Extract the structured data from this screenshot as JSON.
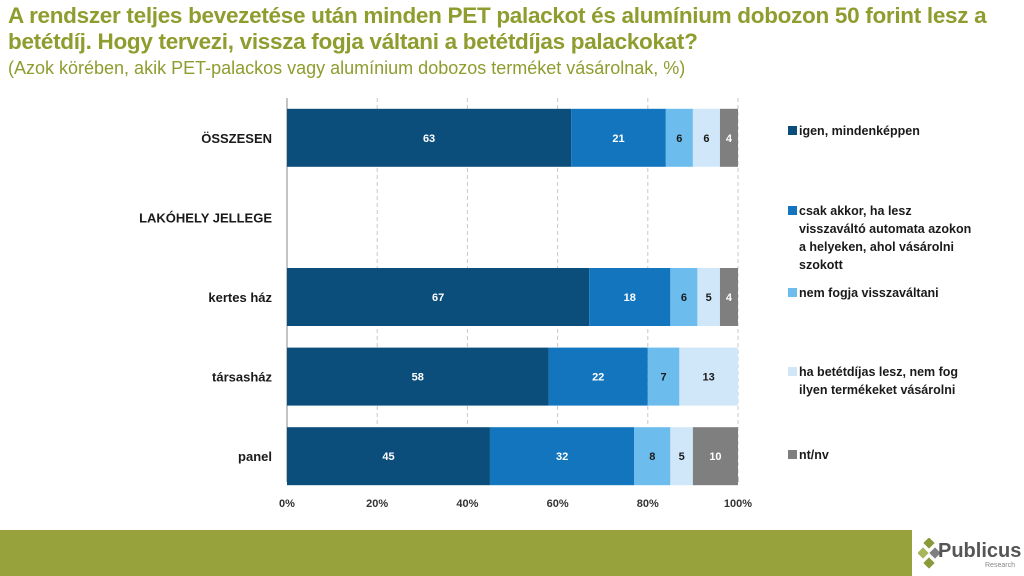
{
  "title": "A rendszer teljes bevezetése után minden PET palackot és alumínium dobozon 50 forint lesz a betétdíj. Hogy tervezi, vissza fogja váltani a betétdíjas palackokat?",
  "subtitle": "(Azok körében, akik PET-palackos vagy alumínium dobozos terméket vásárolnak, %)",
  "logo": {
    "name": "Publicus",
    "sub": "Research"
  },
  "chart_data": {
    "type": "bar",
    "orientation": "horizontal",
    "stacked": true,
    "categories": [
      "ÖSSZESEN",
      "LAKÓHELY JELLEGE",
      "kertes ház",
      "társasház",
      "panel"
    ],
    "series": [
      {
        "name": "igen, mindenképpen",
        "color": "#0c4e7b",
        "values": [
          63,
          null,
          67,
          58,
          45
        ]
      },
      {
        "name": "csak akkor, ha lesz visszaváltó automata azokon a helyeken, ahol vásárolni szokott",
        "color": "#1275bd",
        "values": [
          21,
          null,
          18,
          22,
          32
        ]
      },
      {
        "name": "nem fogja visszaváltani",
        "color": "#6dbcee",
        "values": [
          6,
          null,
          6,
          7,
          8
        ]
      },
      {
        "name": "ha betétdíjas lesz, nem fog ilyen termékeket vásárolni",
        "color": "#d0e7f9",
        "values": [
          6,
          null,
          5,
          13,
          5
        ]
      },
      {
        "name": "nt/nv",
        "color": "#7f7f7f",
        "values": [
          4,
          null,
          4,
          null,
          10
        ]
      }
    ],
    "xlim": [
      0,
      100
    ],
    "xticks": [
      "0%",
      "20%",
      "40%",
      "60%",
      "80%",
      "100%"
    ],
    "grid": true,
    "legend_position": "right"
  }
}
